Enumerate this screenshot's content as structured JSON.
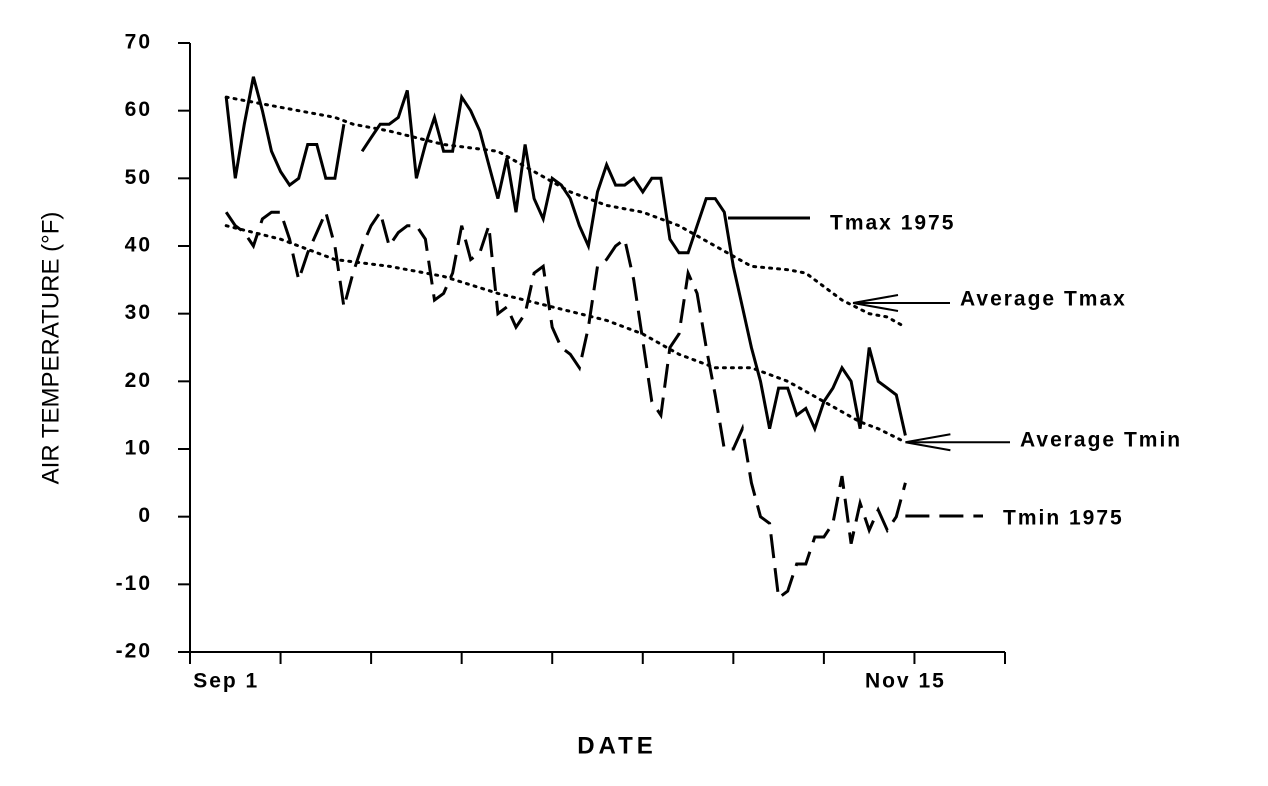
{
  "chart_data": {
    "type": "line",
    "ylabel": "AIR TEMPERATURE (°F)",
    "xlabel": "DATE",
    "xlim": [
      -4,
      86
    ],
    "xticks": [
      -4,
      6,
      16,
      26,
      36,
      46,
      56,
      66,
      76,
      86
    ],
    "xtick_labels": [
      {
        "value": 0,
        "label": "Sep 1"
      },
      {
        "value": 75,
        "label": "Nov 15"
      }
    ],
    "ylim": [
      -20,
      70
    ],
    "yticks": [
      -20,
      -10,
      0,
      10,
      20,
      30,
      40,
      50,
      60,
      70
    ],
    "series": [
      {
        "name": "Tmax 1975",
        "color": "#000000",
        "style": "solid",
        "x": [
          0,
          1,
          2,
          3,
          4,
          5,
          6,
          7,
          8,
          9,
          10,
          11,
          12,
          13,
          14,
          15,
          16,
          17,
          18,
          19,
          20,
          21,
          22,
          23,
          24,
          25,
          26,
          27,
          28,
          29,
          30,
          31,
          32,
          33,
          34,
          35,
          36,
          37,
          38,
          39,
          40,
          41,
          42,
          43,
          44,
          45,
          46,
          47,
          48,
          49,
          50,
          51,
          52,
          53,
          54,
          55,
          56,
          57,
          58,
          59,
          60,
          61,
          62,
          63,
          64,
          65,
          66,
          67,
          68,
          69,
          70,
          71,
          72,
          73,
          74,
          75
        ],
        "values": [
          62,
          50,
          58,
          65,
          60,
          54,
          51,
          49,
          50,
          55,
          55,
          50,
          50,
          58,
          null,
          54,
          56,
          58,
          58,
          59,
          63,
          50,
          55,
          59,
          54,
          54,
          62,
          60,
          57,
          52,
          47,
          53,
          45,
          55,
          47,
          44,
          50,
          49,
          47,
          43,
          40,
          48,
          52,
          49,
          49,
          50,
          48,
          50,
          50,
          41,
          39,
          39,
          43,
          47,
          47,
          45,
          37,
          31,
          25,
          20,
          13,
          19,
          19,
          15,
          16,
          13,
          17,
          19,
          22,
          20,
          13,
          25,
          20,
          19,
          18,
          12
        ]
      },
      {
        "name": "Average Tmax",
        "color": "#000000",
        "style": "dotted",
        "x": [
          0,
          4,
          8,
          12,
          14,
          18,
          24,
          30,
          34,
          38,
          42,
          46,
          50,
          54,
          58,
          62,
          64,
          66,
          68,
          71,
          73,
          75
        ],
        "values": [
          62,
          61,
          60,
          59,
          58,
          57,
          55,
          54,
          51,
          48,
          46,
          45,
          43,
          40,
          37,
          36.5,
          36,
          34,
          32,
          30,
          29.5,
          28
        ]
      },
      {
        "name": "Average Tmin",
        "color": "#000000",
        "style": "dotted",
        "x": [
          0,
          6,
          12,
          18,
          24,
          30,
          36,
          42,
          46,
          50,
          54,
          58,
          62,
          66,
          70,
          72,
          75
        ],
        "values": [
          43,
          41,
          38,
          37,
          35.5,
          33,
          31,
          29,
          27,
          24,
          22,
          22,
          20,
          17,
          14,
          13,
          11
        ]
      },
      {
        "name": "Tmin 1975",
        "color": "#000000",
        "style": "dashed",
        "x": [
          0,
          1,
          2,
          3,
          4,
          5,
          6,
          7,
          8,
          9,
          10,
          11,
          12,
          13,
          14,
          15,
          16,
          17,
          18,
          19,
          20,
          21,
          22,
          23,
          24,
          25,
          26,
          27,
          28,
          29,
          30,
          31,
          32,
          33,
          34,
          35,
          36,
          37,
          38,
          39,
          40,
          41,
          42,
          43,
          44,
          45,
          46,
          47,
          48,
          49,
          50,
          51,
          52,
          53,
          54,
          55,
          56,
          57,
          58,
          59,
          60,
          61,
          62,
          63,
          64,
          65,
          66,
          67,
          68,
          69,
          70,
          71,
          72,
          73,
          74,
          75
        ],
        "values": [
          45,
          43,
          42,
          40,
          44,
          45,
          45,
          41,
          35,
          39,
          42,
          45,
          40,
          31,
          36,
          40,
          43,
          45,
          40,
          42,
          43,
          43,
          41,
          32,
          33,
          36,
          43,
          38,
          39,
          43,
          30,
          31,
          28,
          30,
          36,
          37,
          28,
          25,
          24,
          22,
          28,
          37,
          38,
          40,
          41,
          35,
          26,
          17,
          15,
          25,
          27,
          36,
          33,
          25,
          18,
          10,
          10,
          13,
          5,
          0,
          -1,
          -12,
          -11,
          -7,
          -7,
          -3,
          -3,
          -1,
          6,
          -4,
          2,
          -2,
          1,
          -2,
          0,
          5
        ]
      }
    ]
  }
}
